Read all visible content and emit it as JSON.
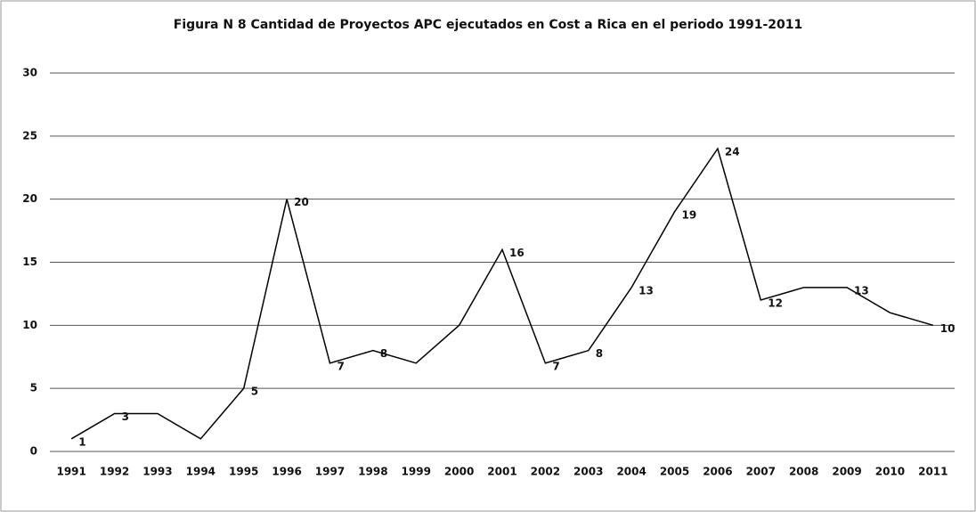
{
  "chart_data": {
    "type": "line",
    "title": "Figura N 8 Cantidad de Proyectos APC ejecutados en Cost a Rica en el periodo 1991-2011",
    "categories": [
      "1991",
      "1992",
      "1993",
      "1994",
      "1995",
      "1996",
      "1997",
      "1998",
      "1999",
      "2000",
      "2001",
      "2002",
      "2003",
      "2004",
      "2005",
      "2006",
      "2007",
      "2008",
      "2009",
      "2010",
      "2011"
    ],
    "values": [
      1,
      3,
      3,
      1,
      5,
      20,
      7,
      8,
      7,
      10,
      16,
      7,
      8,
      13,
      19,
      24,
      12,
      13,
      13,
      11,
      10
    ],
    "value_labels": [
      1,
      3,
      null,
      null,
      5,
      20,
      7,
      8,
      null,
      null,
      16,
      7,
      8,
      13,
      19,
      24,
      12,
      null,
      13,
      null,
      10
    ],
    "color": "#000000",
    "ylim": [
      0,
      30
    ],
    "yticks": [
      0,
      5,
      10,
      15,
      20,
      25,
      30
    ],
    "grid": true
  }
}
